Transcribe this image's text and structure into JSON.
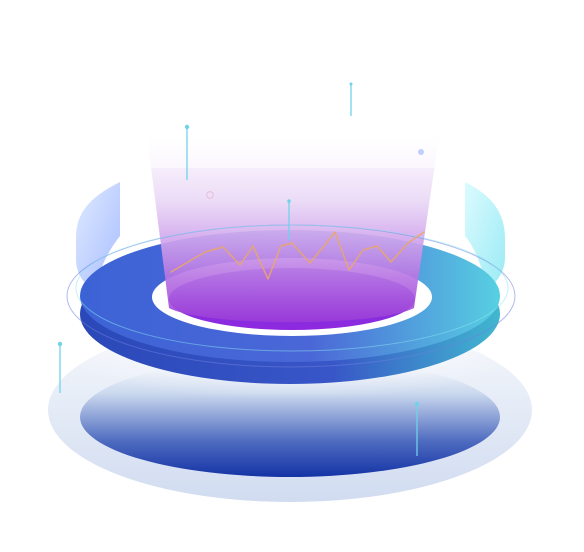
{
  "scene": {
    "type": "isometric-data-platform-illustration",
    "palette": {
      "background": "#ffffff",
      "ring_left": "#3c63d6",
      "ring_mid": "#4b67d7",
      "ring_right": "#57d0e2",
      "ring_inner_fill": "#8e34db",
      "beam_top": "#ffffff",
      "beam_bottom": "#9a3ad8",
      "base_top": "#0f2a92",
      "base_bottom": "#ffffff",
      "accent_line": "#e8a66c",
      "particle": "#6fd3ea"
    },
    "icons": {
      "platform": "ring-platform-icon",
      "beam": "light-beam-icon",
      "chart": "trend-line-icon"
    }
  }
}
